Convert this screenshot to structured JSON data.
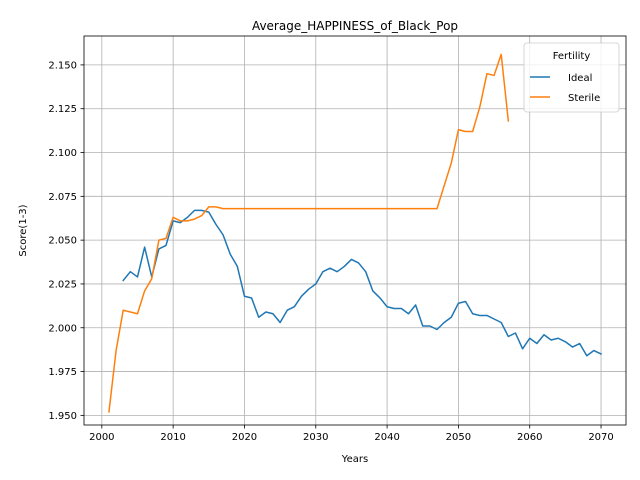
{
  "chart_data": {
    "type": "line",
    "title": "Average_HAPPINESS_of_Black_Pop",
    "xlabel": "Years",
    "ylabel": "Score(1-3)",
    "xlim": [
      1997.5,
      2073.5
    ],
    "ylim": [
      1.9445,
      2.1665
    ],
    "xticks": [
      2000,
      2010,
      2020,
      2030,
      2040,
      2050,
      2060,
      2070
    ],
    "xtick_labels": [
      "2000",
      "2010",
      "2020",
      "2030",
      "2040",
      "2050",
      "2060",
      "2070"
    ],
    "yticks": [
      1.95,
      1.975,
      2.0,
      2.025,
      2.05,
      2.075,
      2.1,
      2.125,
      2.15
    ],
    "ytick_labels": [
      "1.950",
      "1.975",
      "2.000",
      "2.025",
      "2.050",
      "2.075",
      "2.100",
      "2.125",
      "2.150"
    ],
    "grid": true,
    "legend": {
      "title": "Fertility",
      "placement": "top-right"
    },
    "series": [
      {
        "name": "Ideal",
        "color": "#1f77b4",
        "x": [
          2003,
          2004,
          2005,
          2006,
          2007,
          2008,
          2009,
          2010,
          2011,
          2012,
          2013,
          2014,
          2015,
          2016,
          2017,
          2018,
          2019,
          2020,
          2021,
          2022,
          2023,
          2024,
          2025,
          2026,
          2027,
          2028,
          2029,
          2030,
          2031,
          2032,
          2033,
          2034,
          2035,
          2036,
          2037,
          2038,
          2039,
          2040,
          2041,
          2042,
          2043,
          2044,
          2045,
          2046,
          2047,
          2048,
          2049,
          2050,
          2051,
          2052,
          2053,
          2054,
          2055,
          2056,
          2057,
          2058,
          2059,
          2060,
          2061,
          2062,
          2063,
          2064,
          2065,
          2066,
          2067,
          2068,
          2069,
          2070
        ],
        "y": [
          2.027,
          2.032,
          2.029,
          2.046,
          2.029,
          2.045,
          2.047,
          2.061,
          2.06,
          2.063,
          2.067,
          2.067,
          2.066,
          2.059,
          2.053,
          2.042,
          2.035,
          2.018,
          2.017,
          2.006,
          2.009,
          2.008,
          2.003,
          2.01,
          2.012,
          2.018,
          2.022,
          2.025,
          2.032,
          2.034,
          2.032,
          2.035,
          2.039,
          2.037,
          2.032,
          2.021,
          2.017,
          2.012,
          2.011,
          2.011,
          2.008,
          2.013,
          2.001,
          2.001,
          1.999,
          2.003,
          2.006,
          2.014,
          2.015,
          2.008,
          2.007,
          2.007,
          2.005,
          2.003,
          1.995,
          1.997,
          1.988,
          1.994,
          1.991,
          1.996,
          1.993,
          1.994,
          1.992,
          1.989,
          1.991,
          1.984,
          1.987,
          1.985
        ]
      },
      {
        "name": "Sterile",
        "color": "#ff7f0e",
        "x": [
          2001,
          2002,
          2003,
          2004,
          2005,
          2006,
          2007,
          2008,
          2009,
          2010,
          2011,
          2012,
          2013,
          2014,
          2015,
          2016,
          2017,
          2018,
          2019,
          2020,
          2021,
          2022,
          2023,
          2024,
          2025,
          2026,
          2027,
          2028,
          2029,
          2030,
          2031,
          2032,
          2033,
          2034,
          2035,
          2036,
          2037,
          2038,
          2039,
          2040,
          2041,
          2042,
          2043,
          2044,
          2045,
          2046,
          2047,
          2048,
          2049,
          2050,
          2051,
          2052,
          2053,
          2054,
          2055,
          2056,
          2057
        ],
        "y": [
          1.952,
          1.987,
          2.01,
          2.009,
          2.008,
          2.021,
          2.028,
          2.05,
          2.051,
          2.063,
          2.061,
          2.061,
          2.062,
          2.064,
          2.069,
          2.069,
          2.068,
          2.068,
          2.068,
          2.068,
          2.068,
          2.068,
          2.068,
          2.068,
          2.068,
          2.068,
          2.068,
          2.068,
          2.068,
          2.068,
          2.068,
          2.068,
          2.068,
          2.068,
          2.068,
          2.068,
          2.068,
          2.068,
          2.068,
          2.068,
          2.068,
          2.068,
          2.068,
          2.068,
          2.068,
          2.068,
          2.068,
          2.081,
          2.094,
          2.113,
          2.112,
          2.112,
          2.126,
          2.145,
          2.144,
          2.156,
          2.118
        ]
      }
    ]
  }
}
